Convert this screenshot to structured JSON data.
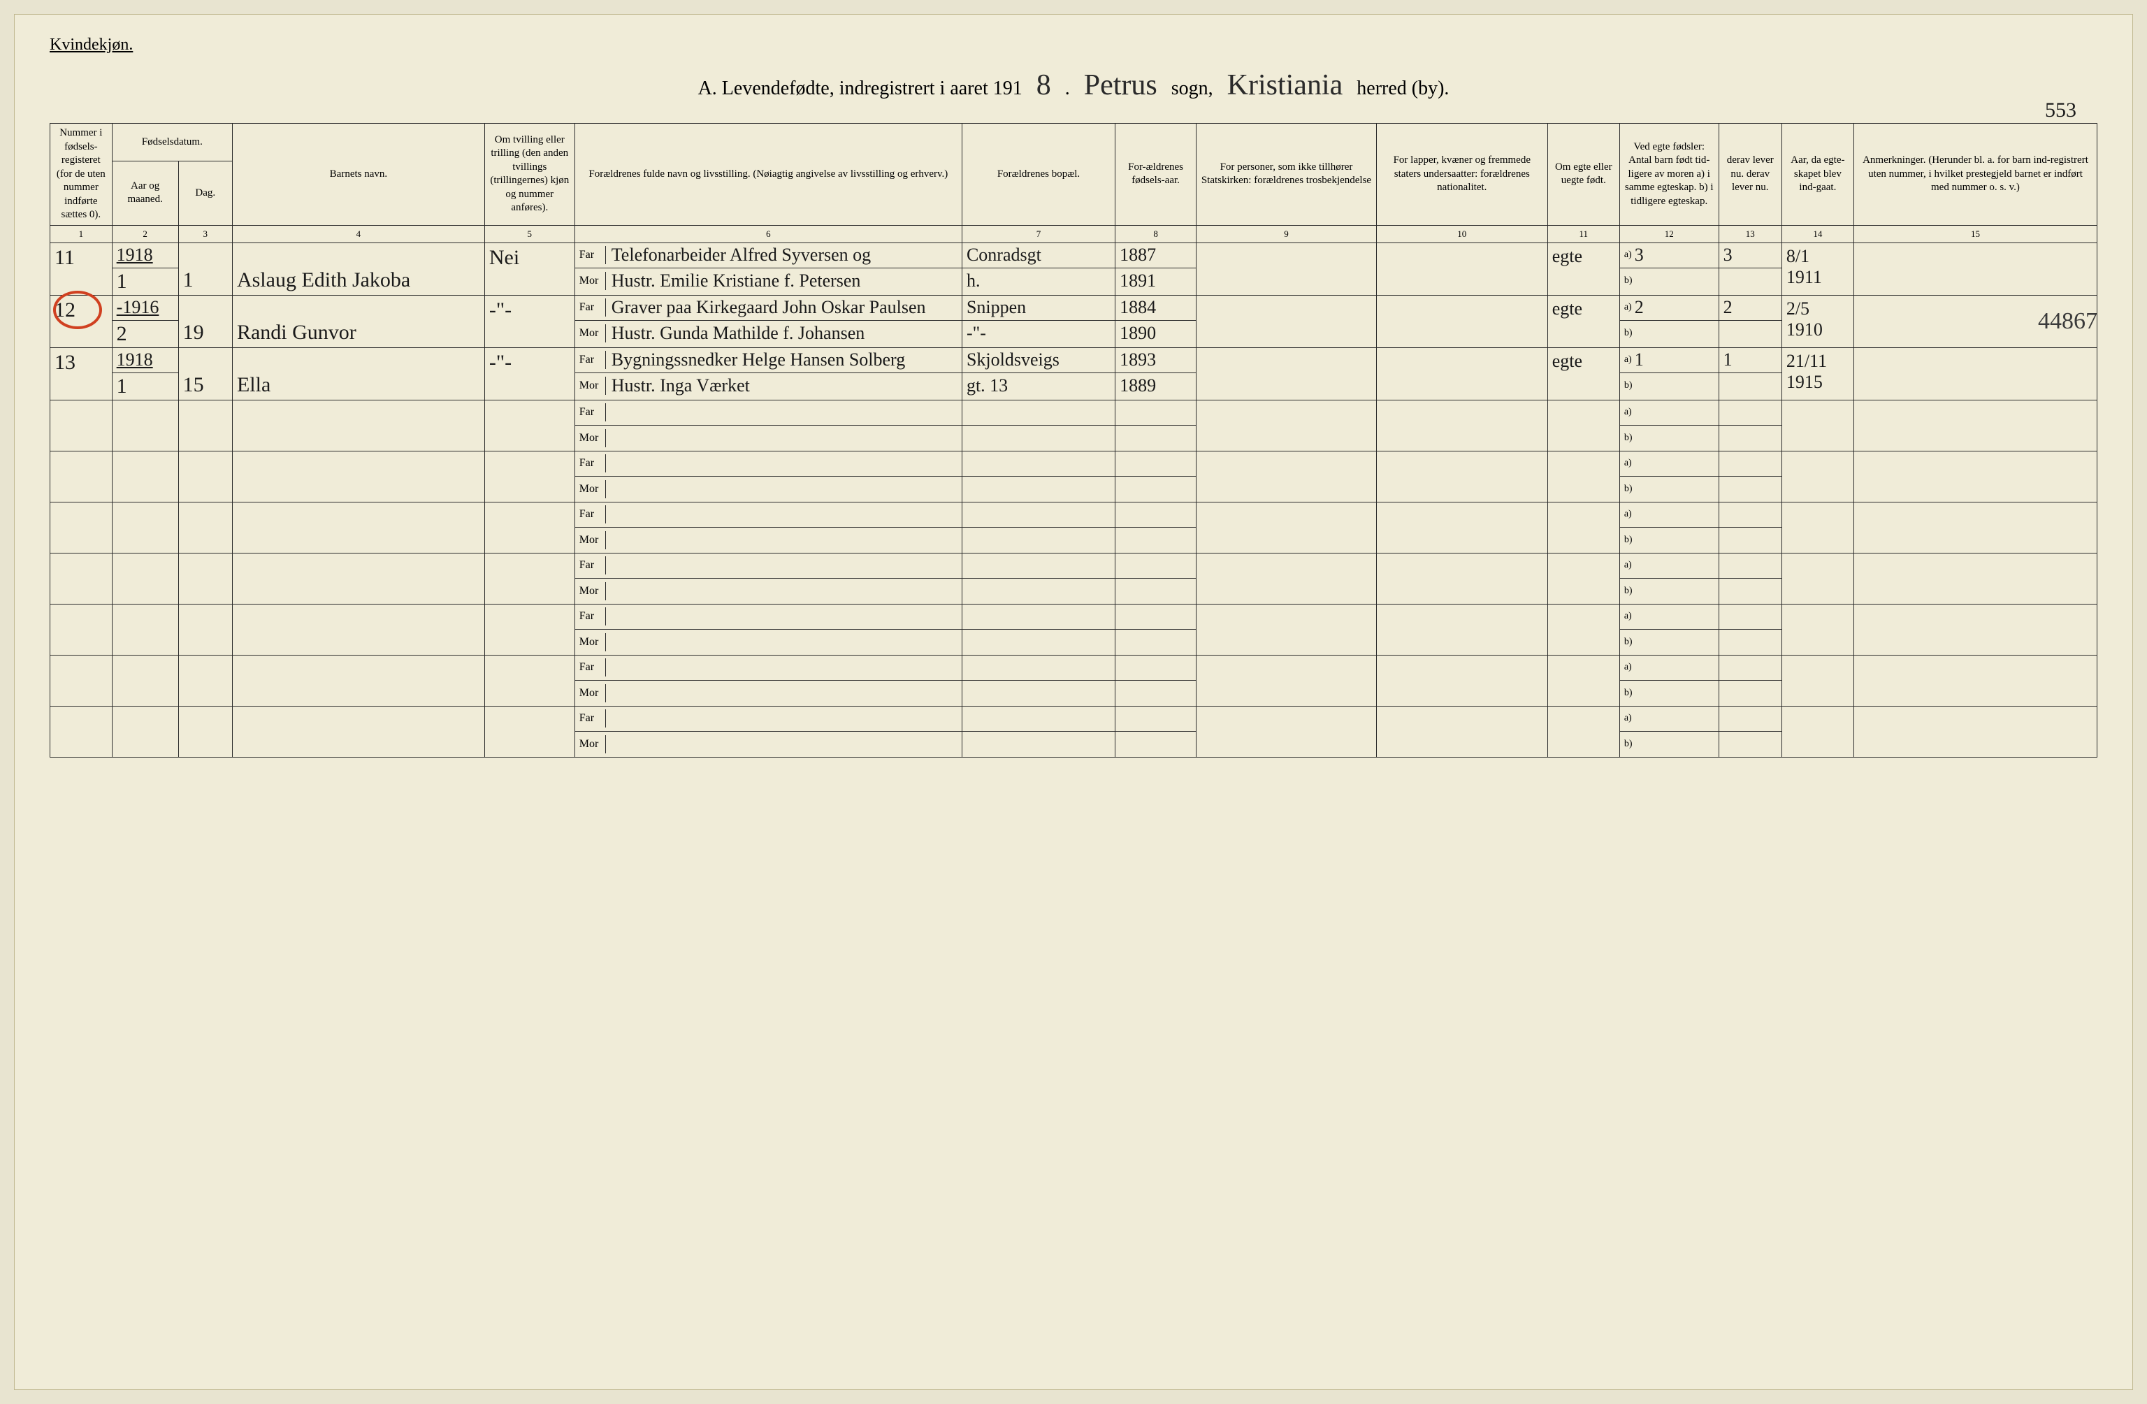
{
  "gender": "Kvindekjøn.",
  "title_prefix": "A. Levendefødte, indregistrert i aaret 191",
  "year_suffix": "8",
  "sogn": "Petrus",
  "sogn_label": "sogn,",
  "herred": "Kristiania",
  "herred_label": "herred (by).",
  "page_number": "553",
  "margin_note": "44867",
  "columns": {
    "c1": "Nummer i fødsels-registeret (for de uten nummer indførte sættes 0).",
    "c2_top": "Fødselsdatum.",
    "c2a": "Aar og maaned.",
    "c2b": "Dag.",
    "c4": "Barnets navn.",
    "c5": "Om tvilling eller trilling (den anden tvillings (trillingernes) kjøn og nummer anføres).",
    "c6": "Forældrenes fulde navn og livsstilling. (Nøiagtig angivelse av livsstilling og erhverv.)",
    "c7": "Forældrenes bopæl.",
    "c8": "For-ældrenes fødsels-aar.",
    "c9": "For personer, som ikke tillhører Statskirken: forældrenes trosbekjendelse",
    "c10": "For lapper, kvæner og fremmede staters undersaatter: forældrenes nationalitet.",
    "c11": "Om egte eller uegte født.",
    "c12": "Ved egte fødsler: Antal barn født tid-ligere av moren a) i samme egteskap. b) i tidligere egteskap.",
    "c13": "derav lever nu. derav lever nu.",
    "c14": "Aar, da egte-skapet blev ind-gaat.",
    "c15": "Anmerkninger. (Herunder bl. a. for barn ind-registrert uten nummer, i hvilket prestegjeld barnet er indført med nummer o. s. v.)",
    "far": "Far",
    "mor": "Mor",
    "nums": [
      "1",
      "2",
      "3",
      "4",
      "5",
      "6",
      "7",
      "8",
      "9",
      "10",
      "11",
      "12",
      "13",
      "14",
      "15"
    ]
  },
  "rows": [
    {
      "num": "11",
      "year_head": "1918",
      "aar": "1",
      "dag": "1",
      "name": "Aslaug Edith Jakoba",
      "twin": "Nei",
      "far_name": "Telefonarbeider Alfred Syversen og",
      "mor_name": "Hustr. Emilie Kristiane f. Petersen",
      "far_addr": "Conradsgt",
      "mor_addr": "h.",
      "far_year": "1887",
      "mor_year": "1891",
      "egte": "egte",
      "born_a": "3",
      "lever": "3",
      "marr_year": "8/1 1911"
    },
    {
      "num": "12",
      "year_head": "-1916",
      "aar": "2",
      "dag": "19",
      "name": "Randi Gunvor",
      "twin": "-\"-",
      "far_name": "Graver paa Kirkegaard John Oskar Paulsen",
      "mor_name": "Hustr. Gunda Mathilde f. Johansen",
      "far_addr": "Snippen",
      "mor_addr": "-\"-",
      "far_year": "1884",
      "mor_year": "1890",
      "egte": "egte",
      "born_a": "2",
      "lever": "2",
      "marr_year": "2/5 1910"
    },
    {
      "num": "13",
      "year_head": "1918",
      "aar": "1",
      "dag": "15",
      "name": "Ella",
      "twin": "-\"-",
      "far_name": "Bygningssnedker Helge Hansen Solberg",
      "mor_name": "Hustr. Inga Værket",
      "far_addr": "Skjoldsveigs",
      "mor_addr": "gt. 13",
      "far_year": "1893",
      "mor_year": "1889",
      "egte": "egte",
      "born_a": "1",
      "lever": "1",
      "marr_year": "21/11 1915"
    }
  ],
  "empty_rows": 7
}
